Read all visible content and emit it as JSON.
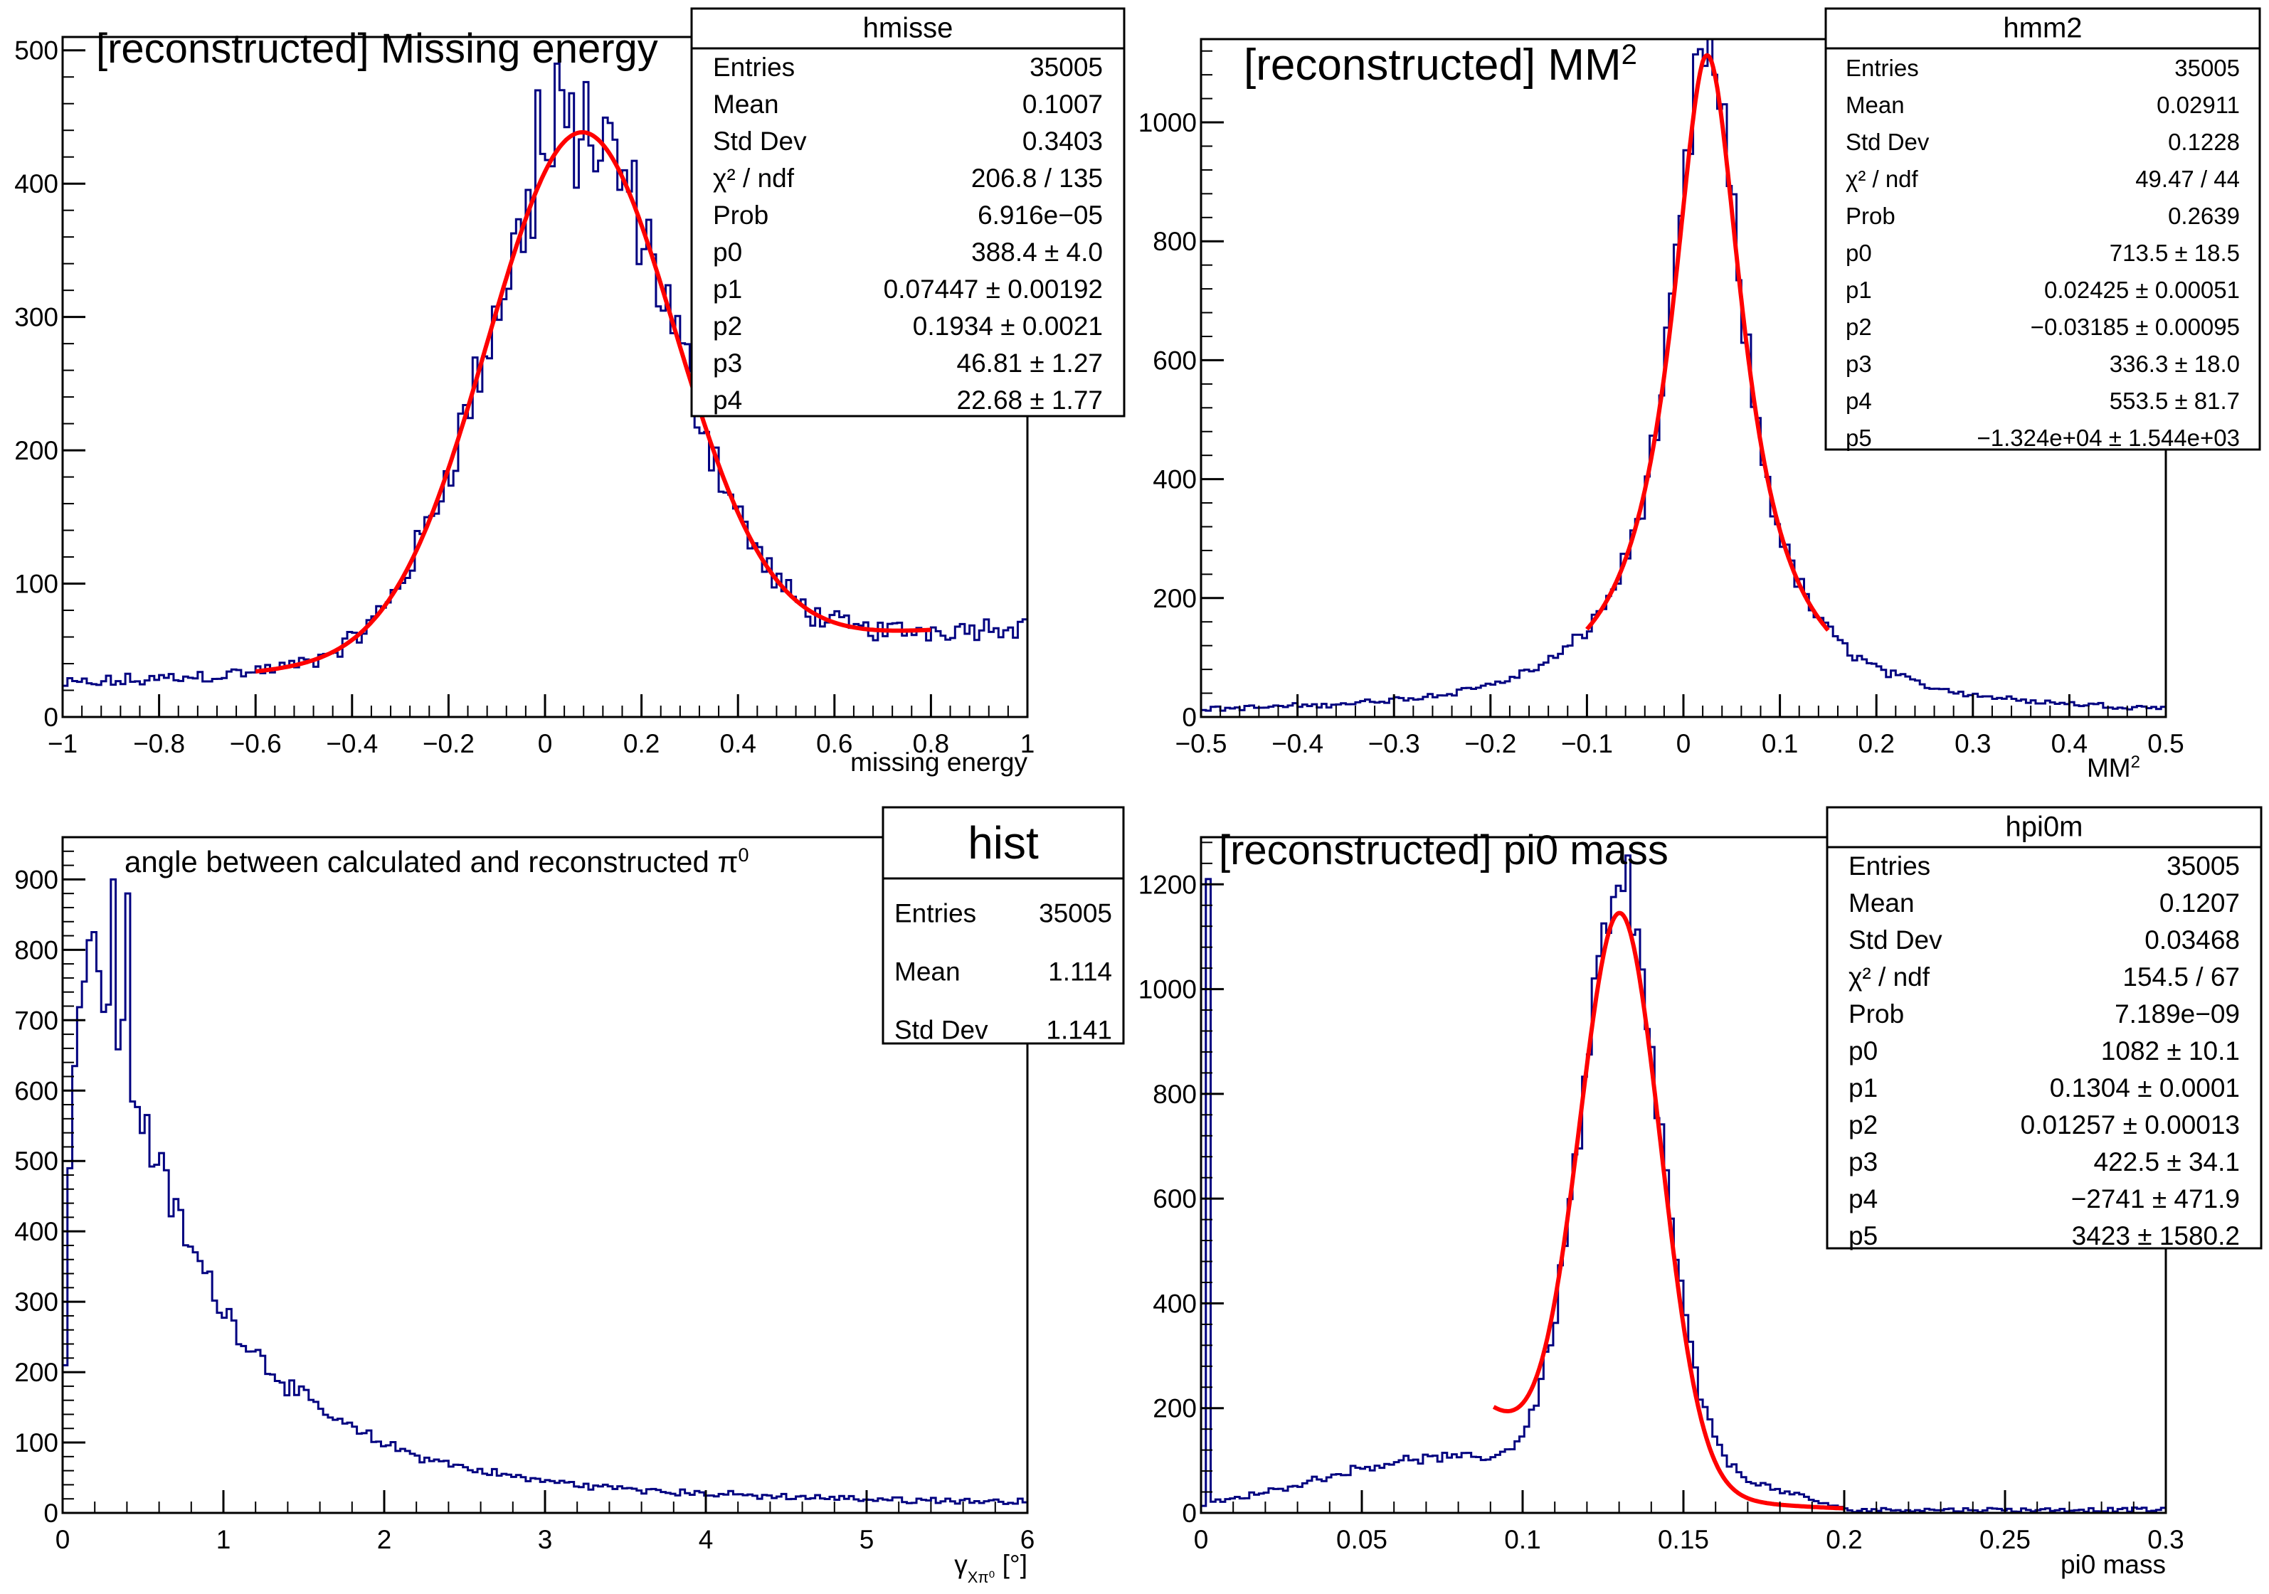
{
  "colors": {
    "histogram": "#000080",
    "fit": "#ff0000",
    "frame": "#000000",
    "background": "#ffffff"
  },
  "chart_data": [
    {
      "type": "histogram",
      "id": "hmisse",
      "title": "[reconstructed] Missing energy",
      "xlabel": "missing energy",
      "ylabel": "",
      "xlim": [
        -1,
        1
      ],
      "ylim": [
        0,
        510
      ],
      "xticks": [
        "−1",
        "−0.8",
        "−0.6",
        "−0.4",
        "−0.2",
        "0",
        "0.2",
        "0.4",
        "0.6",
        "0.8",
        "1"
      ],
      "yticks": [
        "0",
        "100",
        "200",
        "300",
        "400",
        "500"
      ],
      "nbins": 200,
      "bins": {
        "min": -1,
        "max": 1,
        "shape": {
          "type": "gauss-bg",
          "amp": 390,
          "mu": 0.075,
          "sigma": 0.195,
          "bg_a": 46.8,
          "bg_b": 22.7
        },
        "noise": 0.1,
        "spikes": [
          [
            0.02,
            490
          ],
          [
            -0.02,
            470
          ]
        ]
      },
      "fit": {
        "range": [
          -0.6,
          0.8
        ],
        "shape": {
          "type": "gauss-bg",
          "amp": 390,
          "mu": 0.075,
          "sigma": 0.195,
          "bg_a": 46.8,
          "bg_b": 22.7
        }
      },
      "stats": {
        "name": "hmisse",
        "rows": [
          [
            "Entries",
            "35005"
          ],
          [
            "Mean",
            "0.1007"
          ],
          [
            "Std Dev",
            "0.3403"
          ],
          [
            "χ² / ndf",
            "206.8 / 135"
          ],
          [
            "Prob",
            "6.916e−05"
          ],
          [
            "p0",
            "388.4 ± 4.0"
          ],
          [
            "p1",
            "0.07447 ± 0.00192"
          ],
          [
            "p2",
            "0.1934 ± 0.0021"
          ],
          [
            "p3",
            "46.81 ± 1.27"
          ],
          [
            "p4",
            "22.68 ± 1.77"
          ]
        ]
      }
    },
    {
      "type": "histogram",
      "id": "hmm2",
      "title": "[reconstructed] MM",
      "title_sup": "2",
      "xlabel": "MM",
      "xlabel_sup": "2",
      "ylabel": "",
      "xlim": [
        -0.5,
        0.5
      ],
      "ylim": [
        0,
        1140
      ],
      "xticks": [
        "−0.5",
        "−0.4",
        "−0.3",
        "−0.2",
        "−0.1",
        "0",
        "0.1",
        "0.2",
        "0.3",
        "0.4",
        "0.5"
      ],
      "yticks": [
        "0",
        "200",
        "400",
        "600",
        "800",
        "1000"
      ],
      "nbins": 200,
      "bins": {
        "min": -0.5,
        "max": 0.5,
        "shape": {
          "type": "lorentz-bg",
          "amp": 1050,
          "mu": 0.025,
          "gamma": 0.045,
          "bg_a": 5,
          "bg_b": 0
        },
        "noise": 0.08,
        "spikes": [
          [
            0.02,
            1095
          ],
          [
            0.03,
            1080
          ]
        ]
      },
      "fit": {
        "range": [
          -0.1,
          0.15
        ],
        "shape": {
          "type": "lorentz-bg",
          "amp": 1050,
          "mu": 0.025,
          "gamma": 0.045,
          "bg_a": 5,
          "bg_b": 0
        }
      },
      "stats": {
        "name": "hmm2",
        "rows": [
          [
            "Entries",
            "35005"
          ],
          [
            "Mean",
            "0.02911"
          ],
          [
            "Std Dev",
            "0.1228"
          ],
          [
            "χ² / ndf",
            "49.47 / 44"
          ],
          [
            "Prob",
            "0.2639"
          ],
          [
            "p0",
            "713.5 ± 18.5"
          ],
          [
            "p1",
            "0.02425 ± 0.00051"
          ],
          [
            "p2",
            "−0.03185 ± 0.00095"
          ],
          [
            "p3",
            "336.3 ± 18.0"
          ],
          [
            "p4",
            "553.5 ± 81.7"
          ],
          [
            "p5",
            "−1.324e+04 ± 1.544e+03"
          ]
        ]
      }
    },
    {
      "type": "histogram",
      "id": "hist",
      "title": "angle between calculated and reconstructed  π",
      "title_sup": "0",
      "xlabel": "γ",
      "xlabel_sub": "Xπ⁰",
      "xlabel_unit": " [°]",
      "ylabel": "",
      "xlim": [
        0,
        6
      ],
      "ylim": [
        0,
        960
      ],
      "xticks": [
        "0",
        "1",
        "2",
        "3",
        "4",
        "5",
        "6"
      ],
      "yticks": [
        "0",
        "100",
        "200",
        "300",
        "400",
        "500",
        "600",
        "700",
        "800",
        "900"
      ],
      "nbins": 200,
      "bins": {
        "min": 0,
        "max": 6,
        "shape": {
          "type": "angle"
        },
        "noise": 0.07,
        "spikes": [
          [
            0.3,
            900
          ],
          [
            0.39,
            880
          ]
        ]
      },
      "fit": null,
      "stats": {
        "name": "hist",
        "rows": [
          [
            "Entries",
            "35005"
          ],
          [
            "Mean",
            "1.114"
          ],
          [
            "Std Dev",
            "1.141"
          ]
        ]
      }
    },
    {
      "type": "histogram",
      "id": "hpi0m",
      "title": "[reconstructed] pi0 mass",
      "xlabel": "pi0 mass",
      "ylabel": "",
      "xlim": [
        0,
        0.3
      ],
      "ylim": [
        0,
        1290
      ],
      "xticks": [
        "0",
        "0.05",
        "0.1",
        "0.15",
        "0.2",
        "0.25",
        "0.3"
      ],
      "yticks": [
        "0",
        "200",
        "400",
        "600",
        "800",
        "1000",
        "1200"
      ],
      "nbins": 200,
      "bins": {
        "min": 0,
        "max": 0.3,
        "shape": {
          "type": "pi0"
        },
        "noise": 0.07,
        "spikes": [
          [
            0.133,
            1255
          ],
          [
            0.0015,
            1210
          ]
        ]
      },
      "fit": {
        "range": [
          0.091,
          0.2
        ],
        "shape": {
          "type": "pi0fit"
        }
      },
      "stats": {
        "name": "hpi0m",
        "rows": [
          [
            "Entries",
            "35005"
          ],
          [
            "Mean",
            "0.1207"
          ],
          [
            "Std Dev",
            "0.03468"
          ],
          [
            "χ² / ndf",
            "154.5 / 67"
          ],
          [
            "Prob",
            "7.189e−09"
          ],
          [
            "p0",
            "1082 ± 10.1"
          ],
          [
            "p1",
            "0.1304 ± 0.0001"
          ],
          [
            "p2",
            "0.01257 ± 0.00013"
          ],
          [
            "p3",
            "422.5 ± 34.1"
          ],
          [
            "p4",
            "−2741 ± 471.9"
          ],
          [
            "p5",
            "3423 ± 1580.2"
          ]
        ]
      }
    }
  ]
}
